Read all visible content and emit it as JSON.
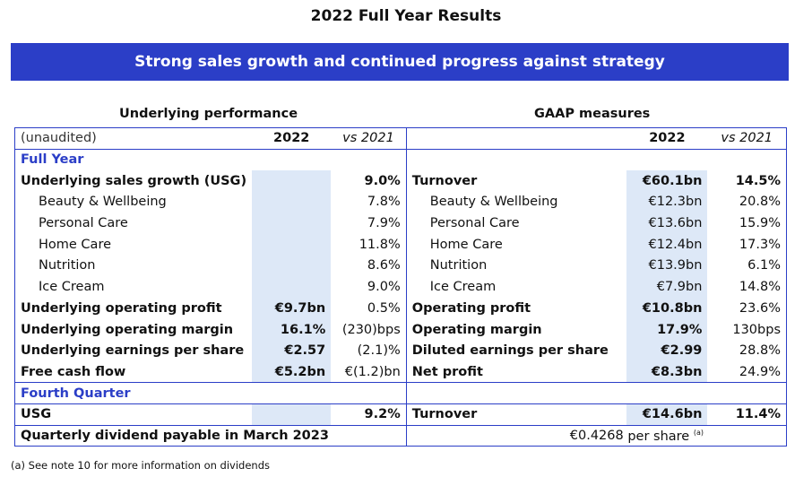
{
  "title": "2022 Full Year Results",
  "banner": "Strong sales growth and continued progress against strategy",
  "left_heading": "Underlying performance",
  "right_heading": "GAAP measures",
  "header": {
    "label": "(unaudited)",
    "col_2022": "2022",
    "col_vs": "vs 2021",
    "r_col_2022": "2022",
    "r_col_vs": "vs 2021"
  },
  "full_year_label": "Full Year",
  "full_year_rows": [
    {
      "l_label": "Underlying sales growth (USG)",
      "l_2022": "",
      "l_vs": "9.0%",
      "r_label": "Turnover",
      "r_2022": "€60.1bn",
      "r_vs": "14.5%"
    },
    {
      "l_label": "Beauty & Wellbeing",
      "l_2022": "",
      "l_vs": "7.8%",
      "r_label": "Beauty & Wellbeing",
      "r_2022": "€12.3bn",
      "r_vs": "20.8%"
    },
    {
      "l_label": "Personal Care",
      "l_2022": "",
      "l_vs": "7.9%",
      "r_label": "Personal Care",
      "r_2022": "€13.6bn",
      "r_vs": "15.9%"
    },
    {
      "l_label": "Home Care",
      "l_2022": "",
      "l_vs": "11.8%",
      "r_label": "Home Care",
      "r_2022": "€12.4bn",
      "r_vs": "17.3%"
    },
    {
      "l_label": "Nutrition",
      "l_2022": "",
      "l_vs": "8.6%",
      "r_label": "Nutrition",
      "r_2022": "€13.9bn",
      "r_vs": "6.1%"
    },
    {
      "l_label": "Ice Cream",
      "l_2022": "",
      "l_vs": "9.0%",
      "r_label": "Ice Cream",
      "r_2022": "€7.9bn",
      "r_vs": "14.8%"
    },
    {
      "l_label": "Underlying operating profit",
      "l_2022": "€9.7bn",
      "l_vs": "0.5%",
      "r_label": "Operating profit",
      "r_2022": "€10.8bn",
      "r_vs": "23.6%"
    },
    {
      "l_label": "Underlying operating margin",
      "l_2022": "16.1%",
      "l_vs": "(230)bps",
      "r_label": "Operating margin",
      "r_2022": "17.9%",
      "r_vs": "130bps"
    },
    {
      "l_label": "Underlying earnings per share",
      "l_2022": "€2.57",
      "l_vs": "(2.1)%",
      "r_label": "Diluted earnings per share",
      "r_2022": "€2.99",
      "r_vs": "28.8%"
    },
    {
      "l_label": "Free cash flow",
      "l_2022": "€5.2bn",
      "l_vs": "€(1.2)bn",
      "r_label": "Net profit",
      "r_2022": "€8.3bn",
      "r_vs": "24.9%"
    }
  ],
  "fourth_quarter_label": "Fourth Quarter",
  "q4_row": {
    "l_label": "USG",
    "l_2022": "",
    "l_vs": "9.2%",
    "r_label": "Turnover",
    "r_2022": "€14.6bn",
    "r_vs": "11.4%"
  },
  "dividend_row": {
    "label": "Quarterly dividend payable in March 2023",
    "value": "€0.4268",
    "unit": "per share",
    "note_mark": "(a)"
  },
  "footnote": "(a) See note 10 for more information on dividends"
}
